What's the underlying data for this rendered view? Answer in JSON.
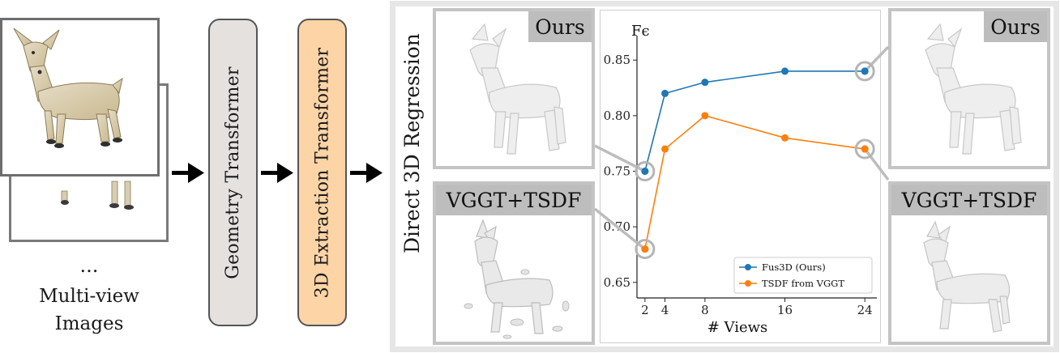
{
  "input": {
    "ellipsis": "...",
    "caption_line1": "Multi-view",
    "caption_line2": "Images"
  },
  "pipeline": {
    "geometry_label": "Geometry Transformer",
    "extraction_label": "3D Extraction Transformer"
  },
  "panel": {
    "section_title": "Direct 3D Regression",
    "top_left_tag": "Ours",
    "bottom_left_tag": "VGGT+TSDF",
    "top_right_tag": "Ours",
    "bottom_right_tag": "VGGT+TSDF"
  },
  "colors": {
    "geometry_fill": "#e4e1df",
    "extraction_fill": "#fcd4a6",
    "series_blue": "#1f77b4",
    "series_orange": "#ff7f0e"
  },
  "chart_data": {
    "type": "line",
    "ylabel": "Fϵ",
    "xlabel": "# Views",
    "x": [
      2,
      4,
      8,
      16,
      24
    ],
    "xlim": [
      1.2,
      25.2
    ],
    "ylim": [
      0.636,
      0.872
    ],
    "yticks": [
      0.65,
      0.7,
      0.75,
      0.8,
      0.85
    ],
    "ytick_labels": [
      "0.65",
      "0.70",
      "0.75",
      "0.80",
      "0.85"
    ],
    "xtick_labels": [
      "2",
      "4",
      "8",
      "16",
      "24"
    ],
    "legend_position": "lower-right",
    "series": [
      {
        "name": "Fus3D (Ours)",
        "values": [
          0.75,
          0.82,
          0.83,
          0.84,
          0.84
        ]
      },
      {
        "name": "TSDF from VGGT",
        "values": [
          0.68,
          0.77,
          0.8,
          0.78,
          0.77
        ]
      }
    ],
    "highlighted": [
      {
        "series": 0,
        "x": 2
      },
      {
        "series": 1,
        "x": 2
      },
      {
        "series": 0,
        "x": 24
      },
      {
        "series": 1,
        "x": 24
      }
    ]
  }
}
